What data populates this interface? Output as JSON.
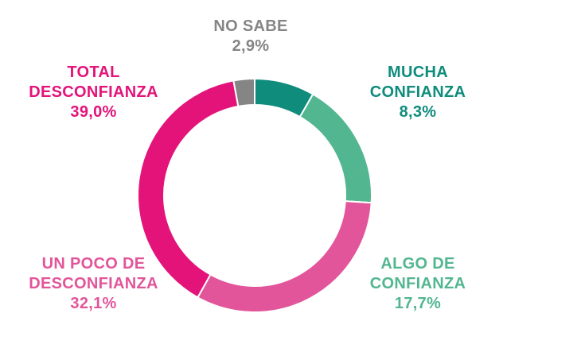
{
  "chart_data": {
    "type": "pie",
    "variant": "donut",
    "start": "top",
    "direction": "clockwise",
    "slices": [
      {
        "label_lines": [
          "MUCHA",
          "CONFIANZA"
        ],
        "value": 8.3,
        "value_label": "8,3%",
        "color": "#0f8c7c"
      },
      {
        "label_lines": [
          "ALGO DE",
          "CONFIANZA"
        ],
        "value": 17.7,
        "value_label": "17,7%",
        "color": "#52b690"
      },
      {
        "label_lines": [
          "UN POCO DE",
          "DESCONFIANZA"
        ],
        "value": 32.1,
        "value_label": "32,1%",
        "color": "#e2559a"
      },
      {
        "label_lines": [
          "TOTAL",
          "DESCONFIANZA"
        ],
        "value": 39.0,
        "value_label": "39,0%",
        "color": "#e3137a"
      },
      {
        "label_lines": [
          "NO SABE"
        ],
        "value": 2.9,
        "value_label": "2,9%",
        "color": "#858585"
      }
    ]
  }
}
